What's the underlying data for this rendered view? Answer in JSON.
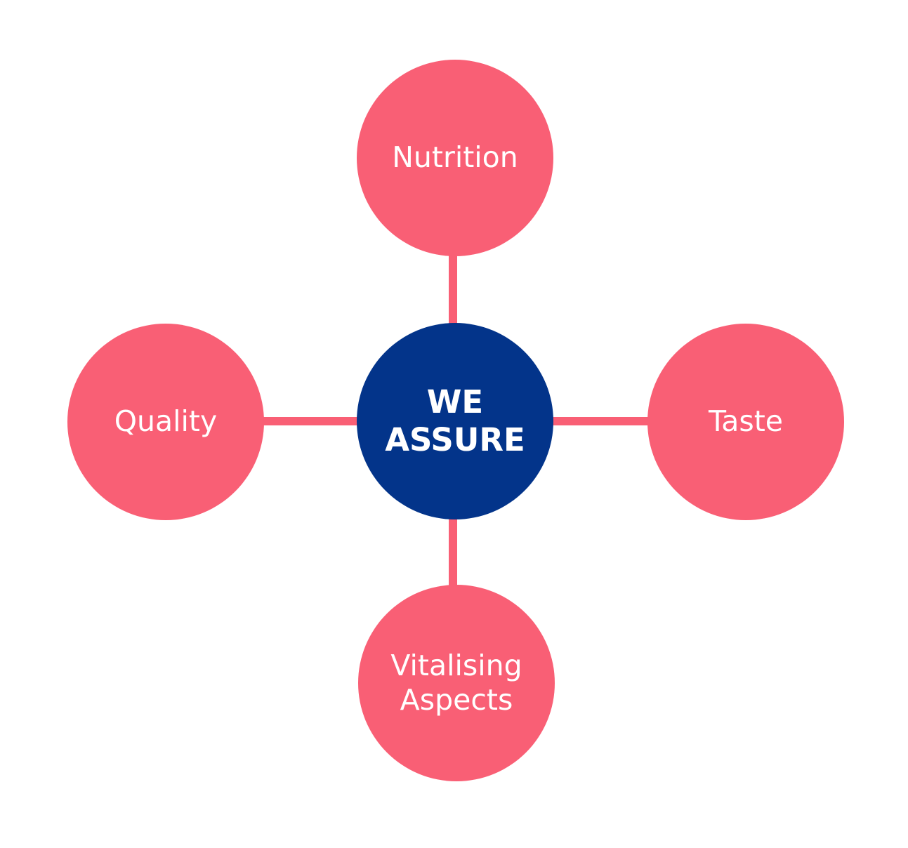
{
  "diagram": {
    "colors": {
      "center": "#03348A",
      "outer": "#F95F75",
      "connector": "#F95F75",
      "text": "#FFFFFF",
      "background": "#FFFFFF"
    },
    "center": {
      "label": "WE\nASSURE"
    },
    "nodes": {
      "top": {
        "label": "Nutrition"
      },
      "left": {
        "label": "Quality"
      },
      "right": {
        "label": "Taste"
      },
      "bottom": {
        "label": "Vitalising\nAspects"
      }
    }
  }
}
